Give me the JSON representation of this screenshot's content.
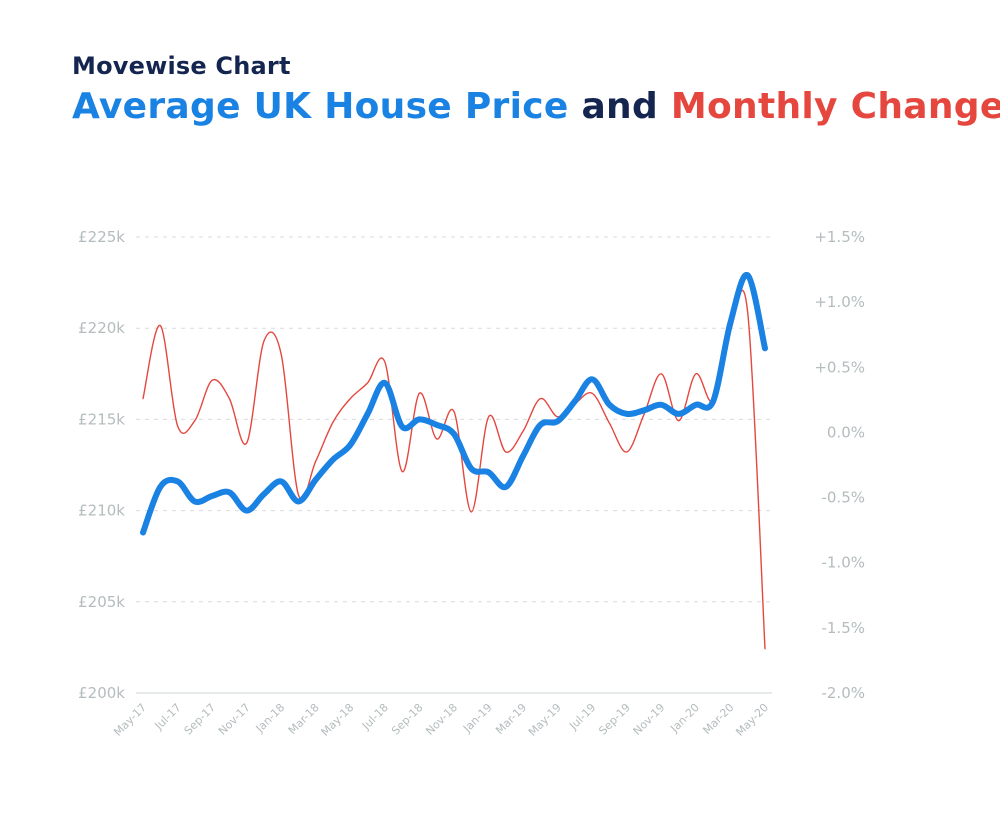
{
  "header": {
    "kicker": "Movewise Chart",
    "title_part1": "Average UK House Price",
    "title_part2": "and",
    "title_part3": "Monthly Change"
  },
  "colors": {
    "price_line": "#1a82e2",
    "change_line": "#e5473f",
    "navy": "#14264f",
    "axis_text": "#b4bcbe",
    "grid": "#d7dcdd"
  },
  "chart_data": {
    "type": "line",
    "title": "Average UK House Price and Monthly Change",
    "x_tick_labels": [
      "May-17",
      "Jul-17",
      "Sep-17",
      "Nov-17",
      "Jan-18",
      "Mar-18",
      "May-18",
      "Jul-18",
      "Sep-18",
      "Nov-18",
      "Jan-19",
      "Mar-19",
      "May-19",
      "Jul-19",
      "Sep-19",
      "Nov-19",
      "Jan-20",
      "Mar-20",
      "May-20"
    ],
    "y_left": {
      "ticks": [
        "£200k",
        "£205k",
        "£210k",
        "£215k",
        "£220k",
        "£225k"
      ],
      "range": [
        200000,
        225000
      ]
    },
    "y_right": {
      "ticks": [
        "-2.0%",
        "-1.5%",
        "-1.0%",
        "-0.5%",
        "0.0%",
        "+0.5%",
        "+1.0%",
        "+1.5%"
      ],
      "range": [
        -2.0,
        1.5
      ]
    },
    "grid": "horizontal-dashed",
    "series": [
      {
        "axis": "left",
        "x": [
          "May-17",
          "Jun-17",
          "Jul-17",
          "Aug-17",
          "Sep-17",
          "Oct-17",
          "Nov-17",
          "Dec-17",
          "Jan-18",
          "Feb-18",
          "Mar-18",
          "Apr-18",
          "May-18",
          "Jun-18",
          "Jul-18",
          "Aug-18",
          "Sep-18",
          "Oct-18",
          "Nov-18",
          "Dec-18",
          "Jan-19",
          "Feb-19",
          "Mar-19",
          "Apr-19",
          "May-19",
          "Jun-19",
          "Jul-19",
          "Aug-19",
          "Sep-19",
          "Oct-19",
          "Nov-19",
          "Dec-19",
          "Jan-20",
          "Feb-20",
          "Mar-20",
          "Apr-20",
          "May-20"
        ],
        "values": [
          208800,
          211300,
          211600,
          210500,
          210800,
          211000,
          210000,
          210900,
          211600,
          210500,
          211700,
          212800,
          213600,
          215300,
          217000,
          214600,
          215000,
          214700,
          214200,
          212300,
          212100,
          211300,
          213000,
          214700,
          214900,
          216000,
          217200,
          215800,
          215300,
          215500,
          215800,
          215300,
          215800,
          216000,
          220300,
          222900,
          218900
        ]
      },
      {
        "axis": "right",
        "x": [
          "May-17",
          "Jun-17",
          "Jul-17",
          "Aug-17",
          "Sep-17",
          "Oct-17",
          "Nov-17",
          "Dec-17",
          "Jan-18",
          "Feb-18",
          "Mar-18",
          "Apr-18",
          "May-18",
          "Jun-18",
          "Jul-18",
          "Aug-18",
          "Sep-18",
          "Oct-18",
          "Nov-18",
          "Dec-18",
          "Jan-19",
          "Feb-19",
          "Mar-19",
          "Apr-19",
          "May-19",
          "Jun-19",
          "Jul-19",
          "Aug-19",
          "Sep-19",
          "Oct-19",
          "Nov-19",
          "Dec-19",
          "Jan-20",
          "Feb-20",
          "Mar-20",
          "Apr-20",
          "May-20"
        ],
        "values": [
          0.26,
          0.82,
          0.05,
          0.09,
          0.4,
          0.26,
          -0.08,
          0.7,
          0.6,
          -0.48,
          -0.22,
          0.08,
          0.26,
          0.38,
          0.54,
          -0.3,
          0.3,
          -0.05,
          0.16,
          -0.61,
          0.12,
          -0.15,
          0.01,
          0.26,
          0.12,
          0.22,
          0.3,
          0.07,
          -0.15,
          0.14,
          0.45,
          0.09,
          0.45,
          0.24,
          0.78,
          0.92,
          -1.66
        ]
      }
    ]
  }
}
